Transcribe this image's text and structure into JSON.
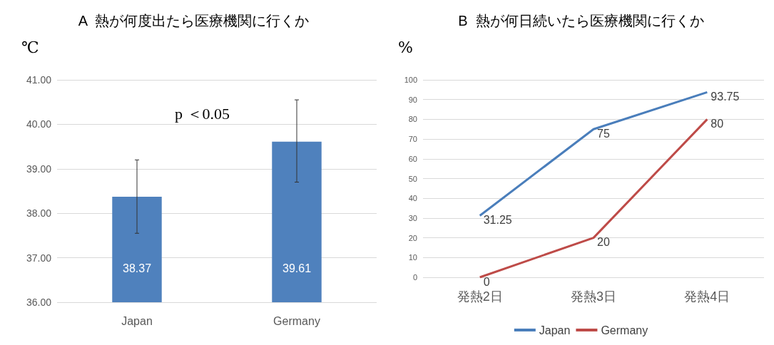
{
  "chart_data": [
    {
      "type": "bar",
      "title": "A  熱が何度出たら医療機関に行くか",
      "ylabel": "℃",
      "categories": [
        "Japan",
        "Germany"
      ],
      "series": [
        {
          "color": "#4f81bd",
          "values": [
            38.37,
            39.61
          ],
          "errors": [
            [
              37.55,
              39.2
            ],
            [
              38.7,
              40.55
            ]
          ]
        }
      ],
      "ylim": [
        36,
        41
      ],
      "yticks": [
        {
          "value": 36,
          "label": "36.00"
        },
        {
          "value": 37,
          "label": "37.00"
        },
        {
          "value": 38,
          "label": "38.00"
        },
        {
          "value": 39,
          "label": "39.00"
        },
        {
          "value": 40,
          "label": "40.00"
        },
        {
          "value": 41,
          "label": "41.00"
        }
      ],
      "grid": "y",
      "data_labels": true,
      "legend": false,
      "annotations": [
        "p ＜0.05"
      ]
    },
    {
      "type": "line",
      "title": "B  熱が何日続いたら医療機関に行くか",
      "ylabel": "%",
      "categories": [
        "発熱2日",
        "発熱3日",
        "発熱4日"
      ],
      "series": [
        {
          "name": "Japan",
          "color": "#4a7ebb",
          "values": [
            31.25,
            75,
            93.75
          ]
        },
        {
          "name": "Germany",
          "color": "#be4b48",
          "values": [
            0,
            20,
            80
          ]
        }
      ],
      "ylim": [
        0,
        100
      ],
      "yticks": [
        0,
        10,
        20,
        30,
        40,
        50,
        60,
        70,
        80,
        90,
        100
      ],
      "grid": "y",
      "data_labels": true,
      "legend": "bottom",
      "marker": "none",
      "line_style": "solid"
    }
  ]
}
